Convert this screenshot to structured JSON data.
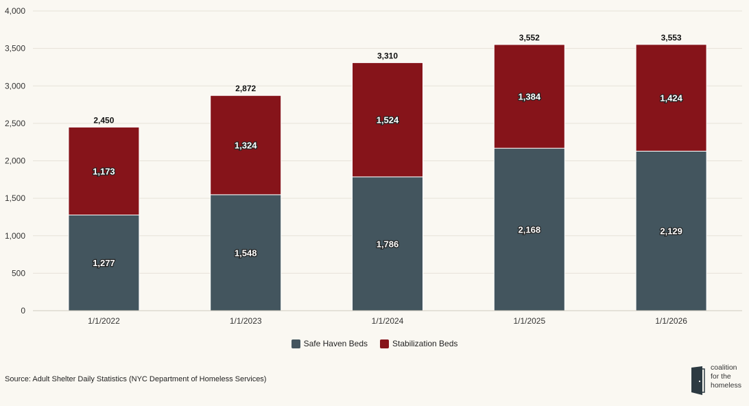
{
  "chart_data": {
    "type": "bar",
    "stacked": true,
    "categories": [
      "1/1/2022",
      "1/1/2023",
      "1/1/2024",
      "1/1/2025",
      "1/1/2026"
    ],
    "series": [
      {
        "name": "Safe Haven Beds",
        "color": "#43555e",
        "values": [
          1277,
          1548,
          1786,
          2168,
          2129
        ]
      },
      {
        "name": "Stabilization Beds",
        "color": "#86141a",
        "values": [
          1173,
          1324,
          1524,
          1384,
          1424
        ]
      }
    ],
    "totals": [
      2450,
      2872,
      3310,
      3552,
      3553
    ],
    "ylim": [
      0,
      4000
    ],
    "yticks": [
      0,
      500,
      1000,
      1500,
      2000,
      2500,
      3000,
      3500,
      4000
    ],
    "grid": true,
    "legend_position": "bottom"
  },
  "source": "Source: Adult Shelter Daily Statistics (NYC Department of Homeless Services)",
  "logo": {
    "line1": "coalition",
    "line2": "for the",
    "line3": "homeless"
  }
}
